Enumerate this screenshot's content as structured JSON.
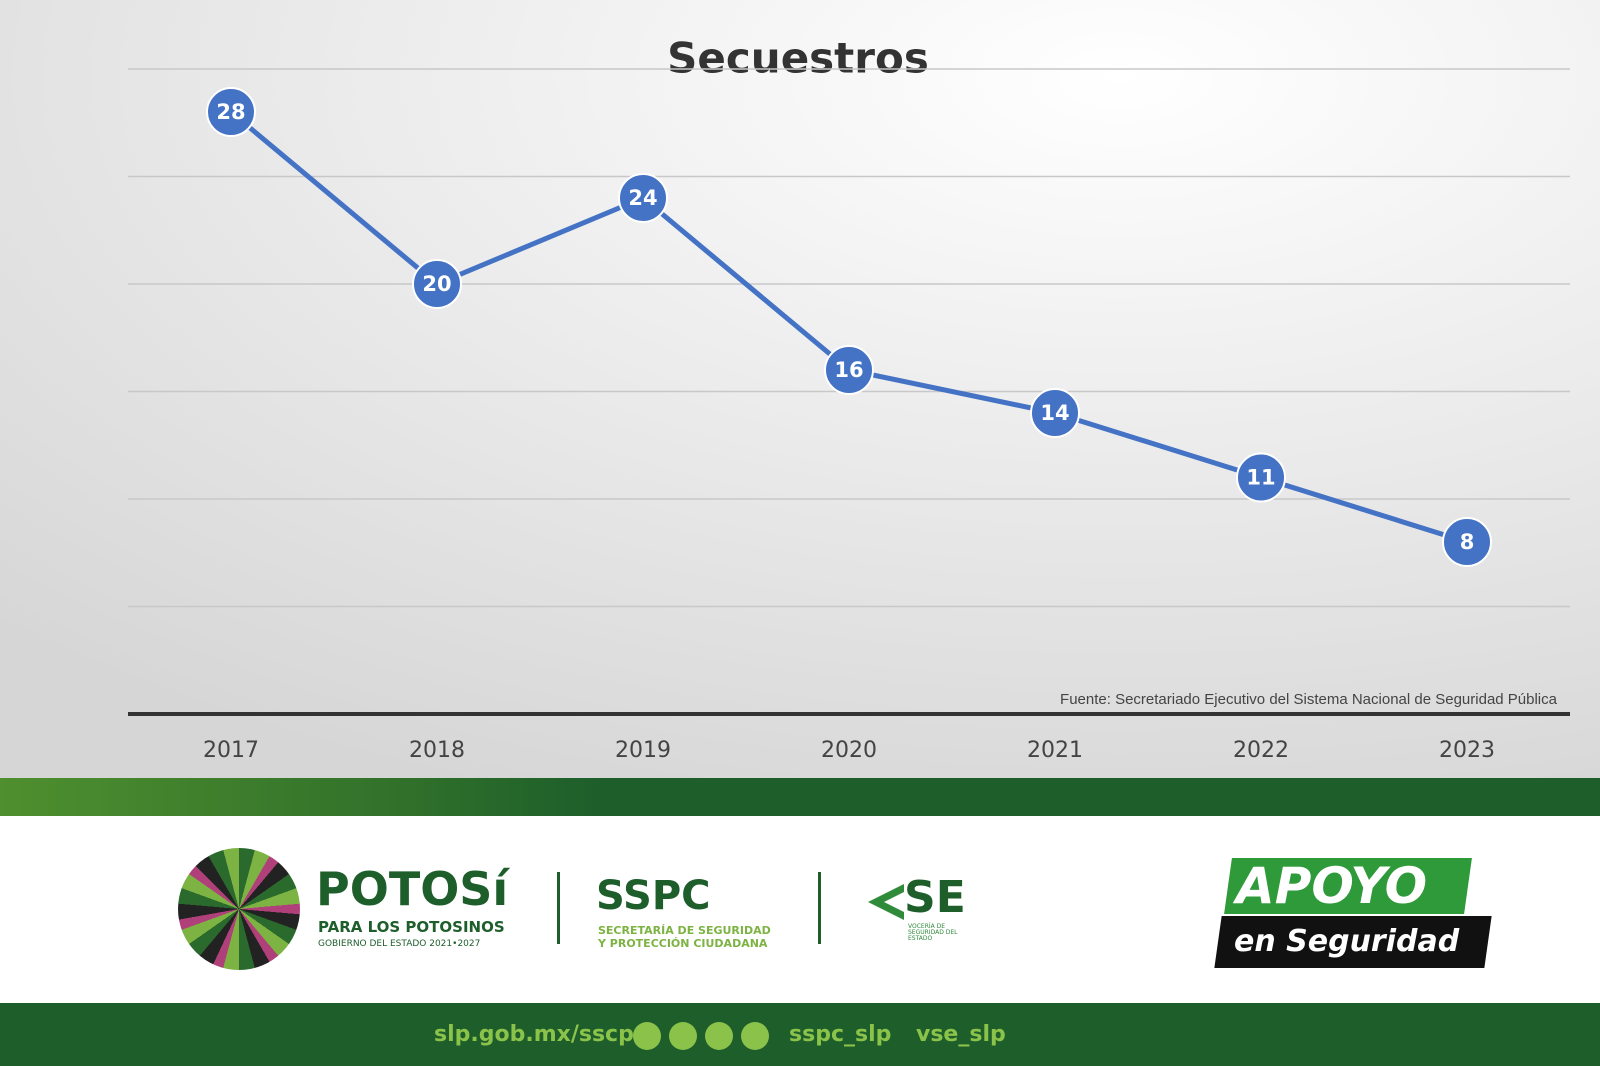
{
  "chart_data": {
    "type": "line",
    "title": "Secuestros",
    "categories": [
      "2017",
      "2018",
      "2019",
      "2020",
      "2021",
      "2022",
      "2023"
    ],
    "series": [
      {
        "name": "Secuestros",
        "color": "#4472c4",
        "values": [
          28,
          20,
          24,
          16,
          14,
          11,
          8
        ]
      }
    ],
    "ylim": [
      0,
      30
    ],
    "yticks": [
      0,
      5,
      10,
      15,
      20,
      25,
      30
    ],
    "grid": true,
    "source": "Fuente: Secretariado Ejecutivo del Sistema Nacional de Seguridad Pública"
  },
  "footer": {
    "potosi": "POTOSí",
    "potosi_sub": "PARA LOS POTOSINOS",
    "gobierno": "GOBIERNO DEL ESTADO 2021•2027",
    "sspc": "SSPC",
    "sspc_sub1": "SECRETARÍA DE SEGURIDAD",
    "sspc_sub2": "Y PROTECCIÓN CIUDADANA",
    "vse": "SE",
    "vse_sub": "VOCERÍA DE SEGURIDAD DEL ESTADO",
    "apoyo": "APOYO",
    "apoyo_sub": "en Seguridad",
    "web": "slp.gob.mx/sscp",
    "handle1": "sspc_slp",
    "handle2": "vse_slp"
  }
}
